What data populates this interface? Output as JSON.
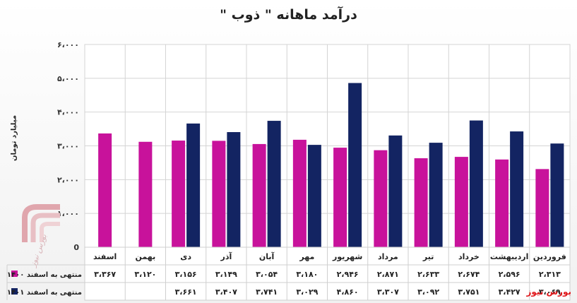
{
  "chart_data": {
    "type": "bar",
    "title": "درآمد ماهانه \" ذوب \"",
    "ylabel": "میلیارد تومان",
    "ylim": [
      0,
      6000
    ],
    "yticks": [
      0,
      1000,
      2000,
      3000,
      4000,
      5000,
      6000
    ],
    "ytick_labels": [
      "0",
      "۱،۰۰۰",
      "۲،۰۰۰",
      "۳،۰۰۰",
      "۴،۰۰۰",
      "۵،۰۰۰",
      "۶،۰۰۰"
    ],
    "grid": true,
    "categories": [
      "فروردین",
      "اردیبهشت",
      "خرداد",
      "تیر",
      "مرداد",
      "شهریور",
      "مهر",
      "آبان",
      "آذر",
      "دی",
      "بهمن",
      "اسفند"
    ],
    "series": [
      {
        "name": "منتهی به اسفند ۱۴۰۰",
        "color": "#c8129b",
        "values": [
          2313,
          2596,
          2674,
          2633,
          2871,
          2946,
          3180,
          3054,
          3149,
          3156,
          3120,
          3367
        ],
        "labels": [
          "۲،۳۱۳",
          "۲،۵۹۶",
          "۲،۶۷۴",
          "۲،۶۳۳",
          "۲،۸۷۱",
          "۲،۹۴۶",
          "۳،۱۸۰",
          "۳،۰۵۴",
          "۳،۱۴۹",
          "۳،۱۵۶",
          "۳،۱۲۰",
          "۳،۳۶۷"
        ]
      },
      {
        "name": "منتهی به اسفند ۱۴۰۱",
        "color": "#132462",
        "values": [
          3069,
          3427,
          3751,
          3092,
          3307,
          4860,
          3029,
          3741,
          3407,
          3661,
          null,
          null
        ],
        "labels": [
          "۳،۰۶۹",
          "۳،۴۲۷",
          "۳،۷۵۱",
          "۳،۰۹۲",
          "۳،۳۰۷",
          "۴،۸۶۰",
          "۳،۰۲۹",
          "۳،۷۴۱",
          "۳،۴۰۷",
          "۳،۶۶۱",
          "",
          ""
        ]
      }
    ],
    "layout_note_direction": "rtl"
  },
  "brand_text": "بورس نیوز",
  "watermark_text": "بورس نیوز"
}
